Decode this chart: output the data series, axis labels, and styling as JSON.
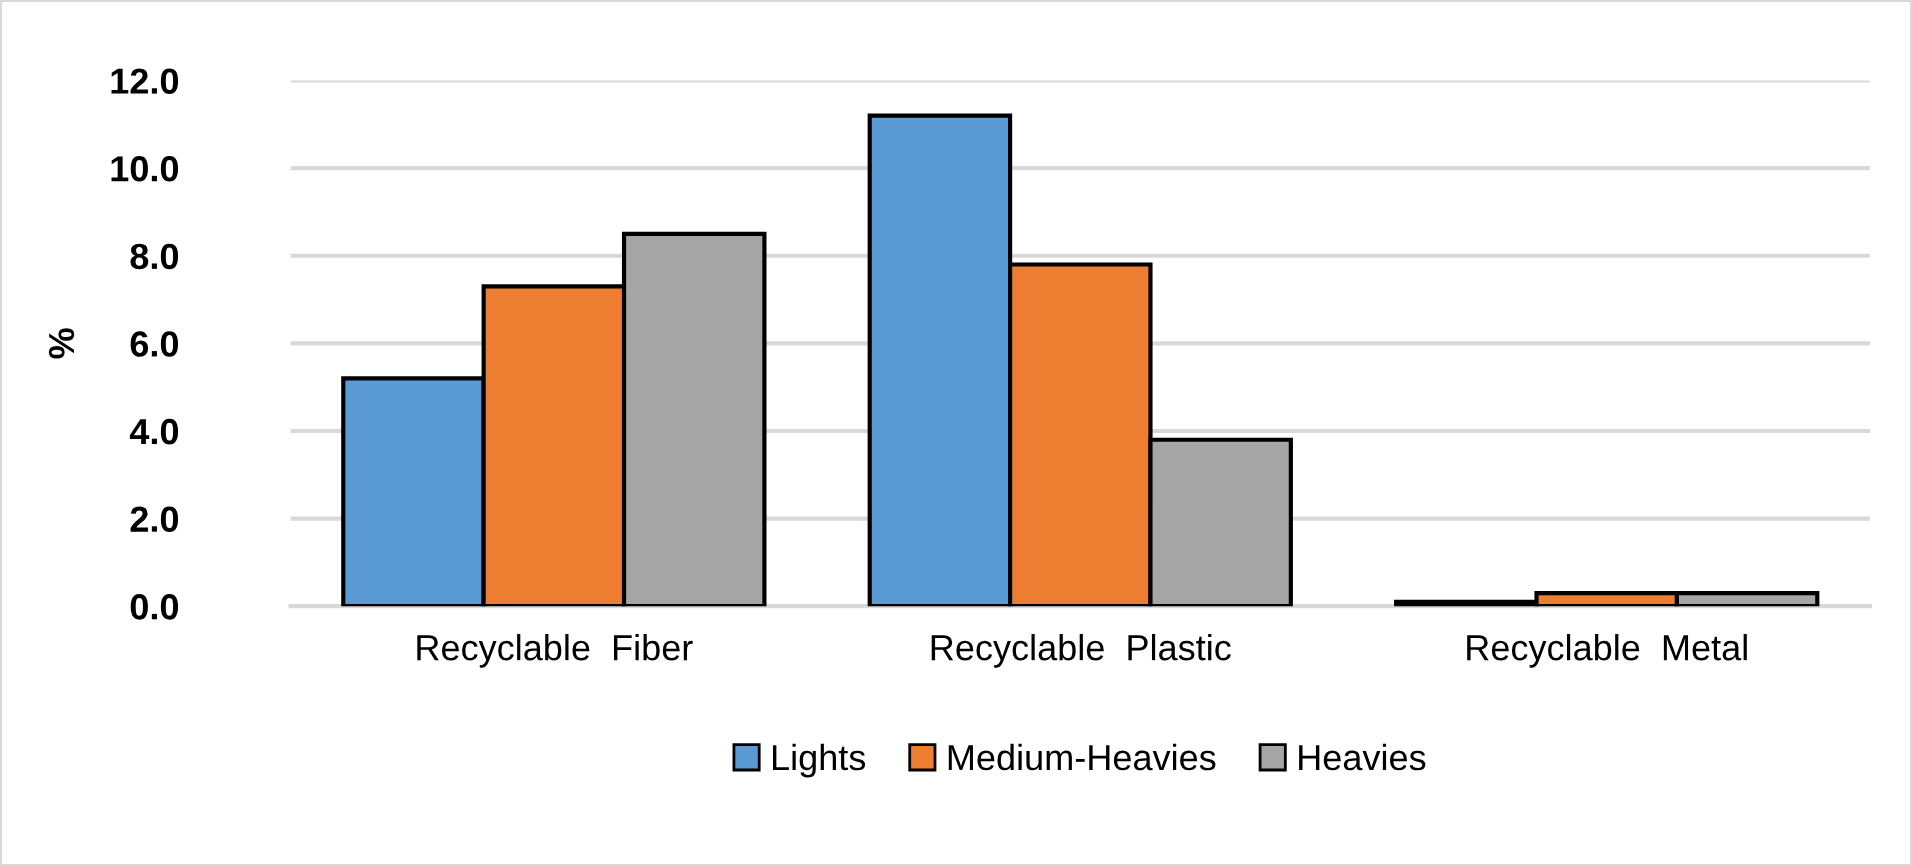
{
  "chart_data": {
    "type": "bar",
    "ylabel": "%",
    "categories": [
      "Recyclable  Fiber",
      "Recyclable  Plastic",
      "Recyclable  Metal"
    ],
    "series": [
      {
        "name": "Lights",
        "color": "#5b9bd5",
        "values": [
          5.2,
          11.2,
          0.1
        ]
      },
      {
        "name": "Medium-Heavies",
        "color": "#ed7d31",
        "values": [
          7.3,
          7.8,
          0.3
        ]
      },
      {
        "name": "Heavies",
        "color": "#a5a5a5",
        "values": [
          8.5,
          3.8,
          0.3
        ]
      }
    ],
    "ylim": [
      0,
      12
    ],
    "yticks": [
      {
        "value": 0,
        "label": "0.0"
      },
      {
        "value": 2,
        "label": "2.0"
      },
      {
        "value": 4,
        "label": "4.0"
      },
      {
        "value": 6,
        "label": "6.0"
      },
      {
        "value": 8,
        "label": "8.0"
      },
      {
        "value": 10,
        "label": "10.0"
      },
      {
        "value": 12,
        "label": "12.0"
      }
    ],
    "grid": "y",
    "legend": "bottom"
  }
}
